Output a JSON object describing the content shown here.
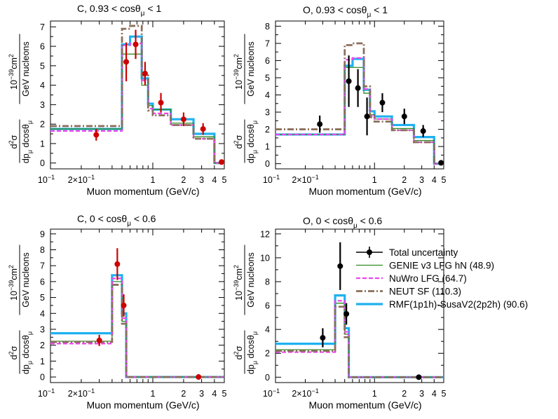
{
  "chart_data": [
    {
      "type": "step",
      "title": "C, 0.93 < cosθμ < 1",
      "xlabel": "Muon momentum (GeV/c)",
      "ylabel": "d²σ/dpμ dcosθμ [10⁻³⁹cm²/GeV nucleons]",
      "x_scale": "log",
      "xlim": [
        0.1,
        5
      ],
      "ylim": [
        -0.3,
        7.3
      ],
      "yticks": [
        0,
        1,
        2,
        3,
        4,
        5,
        6,
        7
      ],
      "xtick_labels": [
        "10⁻¹",
        "2×10⁻¹",
        "1",
        "2",
        "3",
        "4",
        "5"
      ],
      "bin_edges": [
        0.1,
        0.5,
        0.6,
        0.78,
        0.9,
        1.0,
        1.5,
        2.5,
        4.0,
        5.0
      ],
      "series": [
        {
          "name": "GENIE v3 LFG hN (48.9)",
          "values": [
            1.75,
            5.6,
            5.6,
            4.0,
            2.95,
            2.75,
            2.05,
            1.35,
            0.0
          ]
        },
        {
          "name": "NuWro LFG (64.7)",
          "values": [
            1.65,
            6.05,
            6.15,
            4.25,
            2.8,
            2.55,
            1.95,
            1.25,
            0.0
          ]
        },
        {
          "name": "NEUT SF (110.3)",
          "values": [
            1.9,
            6.9,
            7.05,
            4.5,
            2.7,
            2.45,
            1.95,
            1.25,
            0.0
          ]
        },
        {
          "name": "RMF(1p1h)-SusaV2(2p2h) (90.6)",
          "values": [
            1.75,
            6.1,
            6.5,
            4.35,
            3.05,
            2.75,
            2.25,
            1.5,
            0.0
          ]
        }
      ],
      "data": {
        "name": "Total uncertainty",
        "color": "#cc0000",
        "points": [
          {
            "x": 0.28,
            "y": 1.45,
            "err": 0.3
          },
          {
            "x": 0.55,
            "y": 5.2,
            "err": 1.0
          },
          {
            "x": 0.68,
            "y": 6.1,
            "err": 0.75
          },
          {
            "x": 0.84,
            "y": 4.6,
            "err": 0.6
          },
          {
            "x": 1.2,
            "y": 3.1,
            "err": 0.5
          },
          {
            "x": 2.0,
            "y": 2.25,
            "err": 0.35
          },
          {
            "x": 3.1,
            "y": 1.75,
            "err": 0.3
          },
          {
            "x": 4.7,
            "y": 0.05,
            "err": 0.0
          }
        ]
      }
    },
    {
      "type": "step",
      "title": "O, 0.93 < cosθμ < 1",
      "xlabel": "Muon momentum (GeV/c)",
      "ylabel": "d²σ/dpμ dcosθμ [10⁻³⁹cm²/GeV nucleons]",
      "x_scale": "log",
      "xlim": [
        0.1,
        5
      ],
      "ylim": [
        -0.3,
        8.3
      ],
      "yticks": [
        0,
        1,
        2,
        3,
        4,
        5,
        6,
        7,
        8
      ],
      "xtick_labels": [
        "10⁻¹",
        "2×10⁻¹",
        "1",
        "2",
        "3",
        "4",
        "5"
      ],
      "bin_edges": [
        0.1,
        0.5,
        0.6,
        0.78,
        0.9,
        1.0,
        1.5,
        2.5,
        4.0,
        5.0
      ],
      "series": [
        {
          "name": "GENIE v3 LFG hN (48.9)",
          "values": [
            1.7,
            5.6,
            5.6,
            4.1,
            2.85,
            2.6,
            2.05,
            1.35,
            0.0
          ]
        },
        {
          "name": "NuWro LFG (64.7)",
          "values": [
            1.7,
            6.05,
            6.15,
            4.35,
            2.8,
            2.6,
            1.95,
            1.25,
            0.0
          ]
        },
        {
          "name": "NEUT SF (110.3)",
          "values": [
            2.0,
            6.9,
            7.0,
            4.5,
            2.7,
            2.45,
            1.95,
            1.25,
            0.0
          ]
        },
        {
          "name": "RMF(1p1h)-SusaV2(2p2h) (90.6)",
          "values": [
            1.7,
            5.7,
            6.1,
            4.3,
            3.05,
            2.75,
            2.25,
            1.55,
            0.0
          ]
        }
      ],
      "data": {
        "name": "Total uncertainty",
        "color": "#000000",
        "points": [
          {
            "x": 0.28,
            "y": 2.3,
            "err": 0.5
          },
          {
            "x": 0.55,
            "y": 4.8,
            "err": 1.5
          },
          {
            "x": 0.68,
            "y": 4.4,
            "err": 1.1
          },
          {
            "x": 0.84,
            "y": 2.75,
            "err": 1.1
          },
          {
            "x": 1.2,
            "y": 3.55,
            "err": 0.55
          },
          {
            "x": 2.0,
            "y": 2.75,
            "err": 0.45
          },
          {
            "x": 3.1,
            "y": 1.9,
            "err": 0.35
          },
          {
            "x": 4.7,
            "y": 0.05,
            "err": 0.0
          }
        ]
      }
    },
    {
      "type": "step",
      "title": "C, 0 < cosθμ < 0.6",
      "xlabel": "Muon momentum (GeV/c)",
      "ylabel": "d²σ/dpμ dcosθμ [10⁻³⁹cm²/GeV nucleons]",
      "x_scale": "log",
      "xlim": [
        0.1,
        5
      ],
      "ylim": [
        -0.35,
        9.3
      ],
      "yticks": [
        0,
        1,
        2,
        3,
        4,
        5,
        6,
        7,
        8,
        9
      ],
      "xtick_labels": [
        "10⁻¹",
        "2×10⁻¹",
        "1",
        "2",
        "3",
        "4",
        "5"
      ],
      "bin_edges": [
        0.1,
        0.4,
        0.5,
        0.55,
        0.6,
        5.0
      ],
      "series": [
        {
          "name": "GENIE v3 LFG hN (48.9)",
          "values": [
            2.25,
            6.0,
            3.5,
            0.0,
            0.0
          ]
        },
        {
          "name": "NuWro LFG (64.7)",
          "values": [
            2.1,
            6.2,
            3.7,
            0.0,
            0.0
          ]
        },
        {
          "name": "NEUT SF (110.3)",
          "values": [
            2.2,
            5.8,
            3.35,
            0.0,
            0.0
          ]
        },
        {
          "name": "RMF(1p1h)-SusaV2(2p2h) (90.6)",
          "values": [
            2.75,
            6.4,
            4.0,
            0.0,
            0.0
          ]
        }
      ],
      "data": {
        "name": "Total uncertainty",
        "color": "#cc0000",
        "points": [
          {
            "x": 0.3,
            "y": 2.3,
            "err": 0.35
          },
          {
            "x": 0.45,
            "y": 7.1,
            "err": 1.0
          },
          {
            "x": 0.52,
            "y": 4.5,
            "err": 0.7
          },
          {
            "x": 2.8,
            "y": 0.0,
            "err": 0.0
          }
        ]
      }
    },
    {
      "type": "step",
      "title": "O, 0 < cosθμ < 0.6",
      "xlabel": "Muon momentum (GeV/c)",
      "ylabel": "d²σ/dpμ dcosθμ [10⁻³⁹cm²/GeV nucleons]",
      "x_scale": "log",
      "xlim": [
        0.1,
        5
      ],
      "ylim": [
        -0.45,
        12.4
      ],
      "yticks": [
        0,
        2,
        4,
        6,
        8,
        10,
        12
      ],
      "xtick_labels": [
        "10⁻¹",
        "2×10⁻¹",
        "1",
        "2",
        "3",
        "4",
        "5"
      ],
      "bin_edges": [
        0.1,
        0.4,
        0.5,
        0.55,
        0.6,
        5.0
      ],
      "series": [
        {
          "name": "GENIE v3 LFG hN (48.9)",
          "values": [
            2.3,
            6.2,
            3.6,
            0.0,
            0.0
          ]
        },
        {
          "name": "NuWro LFG (64.7)",
          "values": [
            2.1,
            6.4,
            3.8,
            0.0,
            0.0
          ]
        },
        {
          "name": "NEUT SF (110.3)",
          "values": [
            2.2,
            5.9,
            3.35,
            0.0,
            0.0
          ]
        },
        {
          "name": "RMF(1p1h)-SusaV2(2p2h) (90.6)",
          "values": [
            2.8,
            6.85,
            4.1,
            0.0,
            0.0
          ]
        }
      ],
      "data": {
        "name": "Total uncertainty",
        "color": "#000000",
        "points": [
          {
            "x": 0.3,
            "y": 3.3,
            "err": 0.8
          },
          {
            "x": 0.45,
            "y": 9.3,
            "err": 2.0
          },
          {
            "x": 0.52,
            "y": 5.3,
            "err": 0.9
          },
          {
            "x": 2.8,
            "y": 0.0,
            "err": 0.0
          }
        ]
      }
    }
  ],
  "legend": {
    "placement": "right of bottom-right panel",
    "entries": [
      {
        "label": "Total uncertainty",
        "style": "marker"
      },
      {
        "label": "GENIE v3 LFG hN (48.9)",
        "style": "genie"
      },
      {
        "label": "NuWro LFG (64.7)",
        "style": "nuwro"
      },
      {
        "label": "NEUT SF (110.3)",
        "style": "neut"
      },
      {
        "label": "RMF(1p1h)-SusaV2(2p2h) (90.6)",
        "style": "rmf"
      }
    ]
  },
  "styles": {
    "genie": {
      "color": "#2e8b22",
      "width": 1.3,
      "dash": ""
    },
    "nuwro": {
      "color": "#ee44ee",
      "width": 2.2,
      "dash": "6,3"
    },
    "neut": {
      "color": "#8b6f5c",
      "width": 2.8,
      "dash": "9,3,2,3"
    },
    "rmf": {
      "color": "#1fb1f0",
      "width": 3.2,
      "dash": ""
    }
  }
}
